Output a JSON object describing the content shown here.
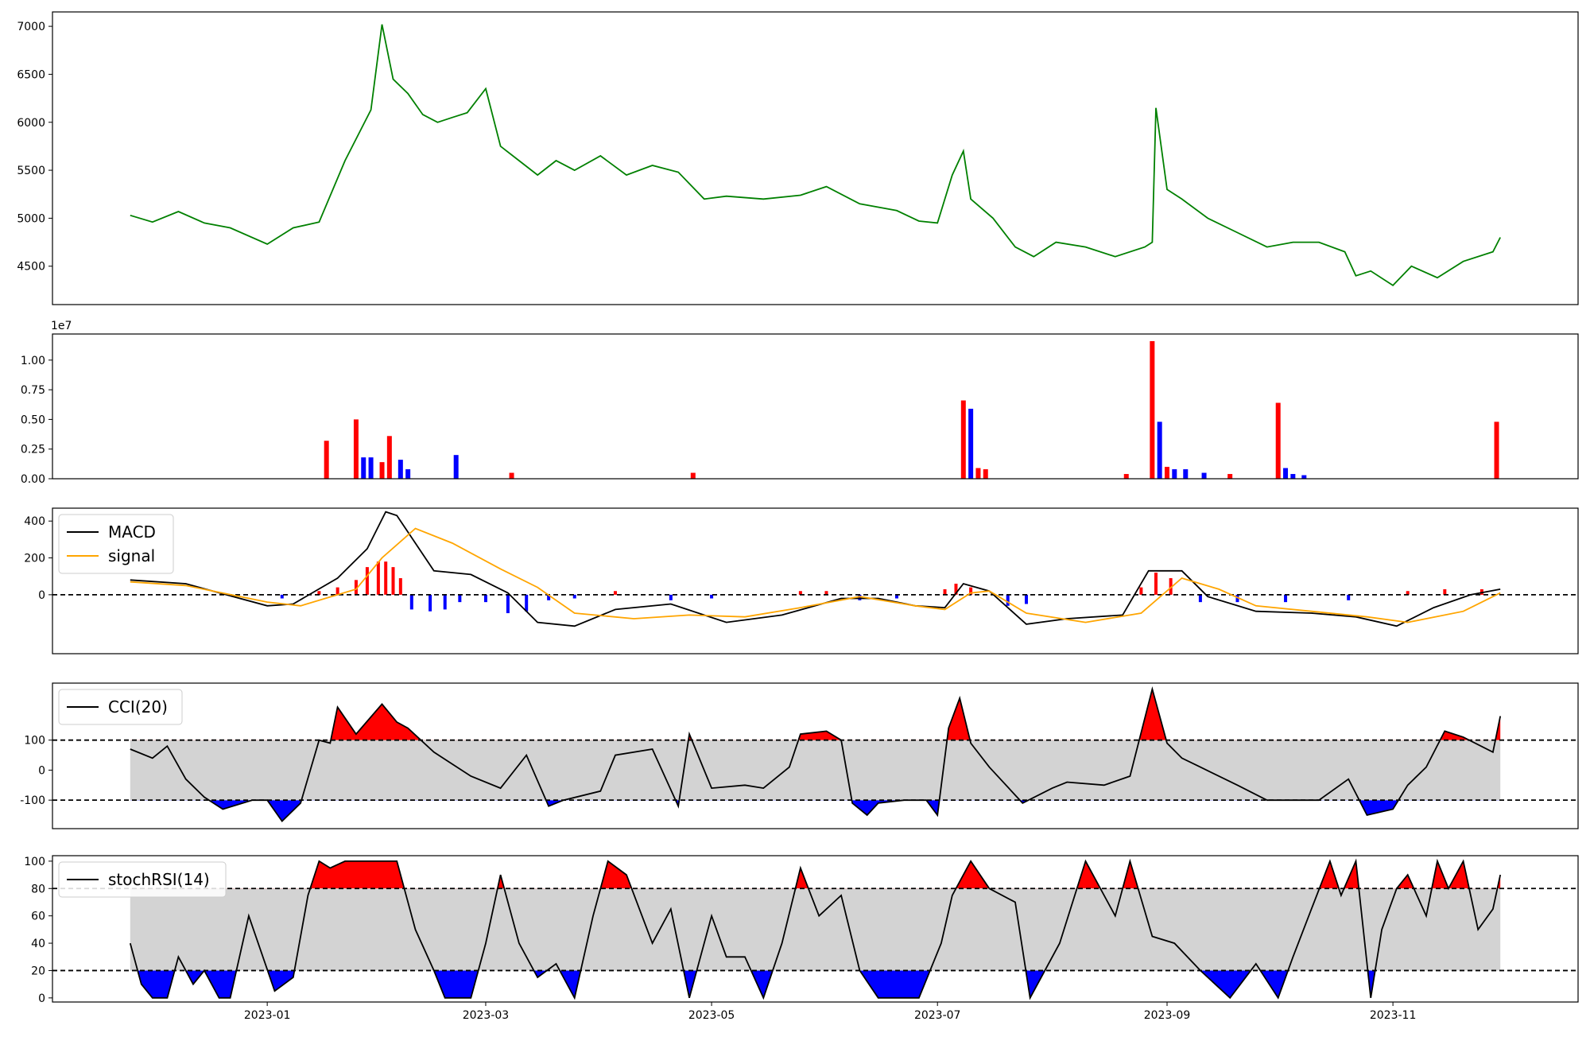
{
  "chart_data": [
    {
      "type": "line",
      "panel": "price",
      "ylim": [
        4100,
        7150
      ],
      "yticks": [
        4500,
        5000,
        5500,
        6000,
        6500,
        7000
      ],
      "line_color": "#008000",
      "x": [
        "2022-11-25",
        "2022-12-01",
        "2022-12-08",
        "2022-12-15",
        "2022-12-22",
        "2023-01-01",
        "2023-01-08",
        "2023-01-15",
        "2023-01-22",
        "2023-01-29",
        "2023-02-01",
        "2023-02-04",
        "2023-02-08",
        "2023-02-12",
        "2023-02-16",
        "2023-02-20",
        "2023-02-24",
        "2023-03-01",
        "2023-03-05",
        "2023-03-10",
        "2023-03-15",
        "2023-03-20",
        "2023-03-25",
        "2023-04-01",
        "2023-04-08",
        "2023-04-15",
        "2023-04-22",
        "2023-04-29",
        "2023-05-05",
        "2023-05-15",
        "2023-05-25",
        "2023-06-01",
        "2023-06-10",
        "2023-06-20",
        "2023-06-26",
        "2023-07-01",
        "2023-07-05",
        "2023-07-08",
        "2023-07-10",
        "2023-07-16",
        "2023-07-22",
        "2023-07-27",
        "2023-08-02",
        "2023-08-10",
        "2023-08-18",
        "2023-08-26",
        "2023-08-28",
        "2023-08-29",
        "2023-09-01",
        "2023-09-05",
        "2023-09-12",
        "2023-09-20",
        "2023-09-28",
        "2023-10-05",
        "2023-10-12",
        "2023-10-19",
        "2023-10-22",
        "2023-10-26",
        "2023-11-01",
        "2023-11-06",
        "2023-11-13",
        "2023-11-20",
        "2023-11-28",
        "2023-11-30"
      ],
      "values": [
        5030,
        4960,
        5070,
        4950,
        4900,
        4730,
        4900,
        4960,
        5600,
        6130,
        7020,
        6450,
        6300,
        6080,
        6000,
        6050,
        6100,
        6350,
        5750,
        5600,
        5450,
        5600,
        5500,
        5650,
        5450,
        5550,
        5480,
        5200,
        5230,
        5200,
        5240,
        5330,
        5150,
        5080,
        4970,
        4950,
        5450,
        5700,
        5200,
        5000,
        4700,
        4600,
        4750,
        4700,
        4600,
        4700,
        4750,
        6150,
        5300,
        5200,
        5000,
        4850,
        4700,
        4750,
        4750,
        4650,
        4400,
        4450,
        4300,
        4500,
        4380,
        4550,
        4650,
        4800
      ]
    },
    {
      "type": "bar",
      "panel": "volume",
      "scale_label": "1e7",
      "ylim": [
        0,
        1.22
      ],
      "yticks": [
        "0.00",
        "0.25",
        "0.50",
        "0.75",
        "1.00"
      ],
      "up_color": "#ff0000",
      "down_color": "#0000ff",
      "x": [
        "2023-01-17",
        "2023-01-25",
        "2023-01-27",
        "2023-01-29",
        "2023-02-01",
        "2023-02-03",
        "2023-02-06",
        "2023-02-08",
        "2023-02-21",
        "2023-03-08",
        "2023-04-26",
        "2023-07-08",
        "2023-07-10",
        "2023-07-12",
        "2023-07-14",
        "2023-08-21",
        "2023-08-28",
        "2023-08-30",
        "2023-09-01",
        "2023-09-03",
        "2023-09-06",
        "2023-09-11",
        "2023-09-18",
        "2023-10-01",
        "2023-10-03",
        "2023-10-05",
        "2023-10-08",
        "2023-11-29"
      ],
      "values": [
        0.32,
        0.5,
        0.18,
        0.18,
        0.14,
        0.36,
        0.16,
        0.08,
        0.2,
        0.05,
        0.05,
        0.66,
        0.59,
        0.09,
        0.08,
        0.04,
        1.16,
        0.48,
        0.1,
        0.08,
        0.08,
        0.05,
        0.04,
        0.64,
        0.09,
        0.04,
        0.03,
        0.48
      ],
      "directions": [
        "up",
        "up",
        "down",
        "down",
        "up",
        "up",
        "down",
        "down",
        "down",
        "up",
        "up",
        "up",
        "down",
        "up",
        "up",
        "up",
        "up",
        "down",
        "up",
        "down",
        "down",
        "down",
        "up",
        "up",
        "down",
        "down",
        "down",
        "up"
      ]
    },
    {
      "type": "line",
      "panel": "macd",
      "ylim": [
        -320,
        470
      ],
      "yticks": [
        0,
        200,
        400
      ],
      "legend_position": "upper-left",
      "hist_up_color": "#ff0000",
      "hist_down_color": "#0000ff",
      "series": [
        {
          "name": "MACD",
          "color": "#000000",
          "x": [
            "2022-11-25",
            "2022-12-10",
            "2023-01-01",
            "2023-01-08",
            "2023-01-20",
            "2023-01-28",
            "2023-02-02",
            "2023-02-05",
            "2023-02-15",
            "2023-02-25",
            "2023-03-07",
            "2023-03-15",
            "2023-03-25",
            "2023-04-05",
            "2023-04-20",
            "2023-05-05",
            "2023-05-20",
            "2023-06-05",
            "2023-06-15",
            "2023-06-25",
            "2023-07-03",
            "2023-07-08",
            "2023-07-15",
            "2023-07-25",
            "2023-08-05",
            "2023-08-20",
            "2023-08-27",
            "2023-09-05",
            "2023-09-12",
            "2023-09-25",
            "2023-10-10",
            "2023-10-22",
            "2023-11-02",
            "2023-11-12",
            "2023-11-22",
            "2023-11-30"
          ],
          "values": [
            80,
            60,
            -60,
            -50,
            90,
            250,
            450,
            430,
            130,
            110,
            10,
            -150,
            -170,
            -80,
            -50,
            -150,
            -110,
            -20,
            -20,
            -60,
            -70,
            60,
            20,
            -160,
            -130,
            -110,
            130,
            130,
            -10,
            -90,
            -100,
            -120,
            -170,
            -70,
            0,
            30
          ]
        },
        {
          "name": "signal",
          "color": "#ffa500",
          "x": [
            "2022-11-25",
            "2022-12-10",
            "2023-01-01",
            "2023-01-10",
            "2023-01-25",
            "2023-02-01",
            "2023-02-10",
            "2023-02-20",
            "2023-03-05",
            "2023-03-15",
            "2023-03-25",
            "2023-04-10",
            "2023-04-25",
            "2023-05-10",
            "2023-05-25",
            "2023-06-10",
            "2023-06-25",
            "2023-07-03",
            "2023-07-10",
            "2023-07-15",
            "2023-07-25",
            "2023-08-10",
            "2023-08-25",
            "2023-09-05",
            "2023-09-15",
            "2023-09-25",
            "2023-10-10",
            "2023-10-25",
            "2023-11-05",
            "2023-11-20",
            "2023-11-30"
          ],
          "values": [
            70,
            50,
            -40,
            -60,
            30,
            200,
            360,
            280,
            140,
            40,
            -100,
            -130,
            -110,
            -120,
            -70,
            -10,
            -60,
            -80,
            10,
            20,
            -100,
            -150,
            -100,
            90,
            30,
            -60,
            -90,
            -120,
            -150,
            -90,
            10
          ]
        }
      ],
      "histogram": {
        "x": [
          "2023-01-05",
          "2023-01-15",
          "2023-01-20",
          "2023-01-25",
          "2023-01-28",
          "2023-01-31",
          "2023-02-02",
          "2023-02-04",
          "2023-02-06",
          "2023-02-09",
          "2023-02-14",
          "2023-02-18",
          "2023-02-22",
          "2023-03-01",
          "2023-03-07",
          "2023-03-12",
          "2023-03-18",
          "2023-03-25",
          "2023-04-05",
          "2023-04-20",
          "2023-05-01",
          "2023-05-25",
          "2023-06-01",
          "2023-06-10",
          "2023-06-20",
          "2023-07-03",
          "2023-07-06",
          "2023-07-10",
          "2023-07-20",
          "2023-07-25",
          "2023-08-05",
          "2023-08-25",
          "2023-08-29",
          "2023-09-02",
          "2023-09-10",
          "2023-09-20",
          "2023-10-03",
          "2023-10-20",
          "2023-11-05",
          "2023-11-15",
          "2023-11-25"
        ],
        "values": [
          -20,
          20,
          40,
          80,
          150,
          180,
          180,
          150,
          90,
          -80,
          -90,
          -80,
          -40,
          -40,
          -100,
          -90,
          -30,
          -20,
          20,
          -30,
          -20,
          20,
          20,
          -30,
          -20,
          30,
          60,
          40,
          -60,
          -50,
          0,
          40,
          120,
          90,
          -40,
          -40,
          -40,
          -30,
          20,
          30,
          30
        ]
      }
    },
    {
      "type": "line",
      "panel": "cci",
      "ylim": [
        -195,
        290
      ],
      "yticks": [
        -100,
        0,
        100
      ],
      "thresholds": [
        100,
        -100
      ],
      "legend_position": "upper-left",
      "band_color": "#d3d3d3",
      "over_color": "#ff0000",
      "under_color": "#0000ff",
      "series": [
        {
          "name": "CCI(20)",
          "color": "#000000",
          "x": [
            "2022-11-25",
            "2022-12-01",
            "2022-12-05",
            "2022-12-10",
            "2022-12-15",
            "2022-12-20",
            "2022-12-28",
            "2023-01-01",
            "2023-01-05",
            "2023-01-10",
            "2023-01-15",
            "2023-01-18",
            "2023-01-20",
            "2023-01-25",
            "2023-02-01",
            "2023-02-05",
            "2023-02-08",
            "2023-02-15",
            "2023-02-20",
            "2023-02-25",
            "2023-03-05",
            "2023-03-12",
            "2023-03-18",
            "2023-03-22",
            "2023-04-01",
            "2023-04-05",
            "2023-04-15",
            "2023-04-22",
            "2023-04-25",
            "2023-05-01",
            "2023-05-10",
            "2023-05-15",
            "2023-05-22",
            "2023-05-25",
            "2023-06-01",
            "2023-06-05",
            "2023-06-08",
            "2023-06-12",
            "2023-06-15",
            "2023-06-22",
            "2023-06-28",
            "2023-07-01",
            "2023-07-04",
            "2023-07-07",
            "2023-07-10",
            "2023-07-15",
            "2023-07-24",
            "2023-08-01",
            "2023-08-05",
            "2023-08-15",
            "2023-08-22",
            "2023-08-28",
            "2023-09-01",
            "2023-09-05",
            "2023-09-10",
            "2023-09-20",
            "2023-09-28",
            "2023-10-05",
            "2023-10-12",
            "2023-10-20",
            "2023-10-25",
            "2023-11-01",
            "2023-11-05",
            "2023-11-10",
            "2023-11-15",
            "2023-11-20",
            "2023-11-28",
            "2023-11-30"
          ],
          "values": [
            70,
            40,
            80,
            -30,
            -90,
            -130,
            -100,
            -100,
            -170,
            -110,
            100,
            90,
            210,
            120,
            220,
            160,
            140,
            60,
            20,
            -20,
            -60,
            50,
            -120,
            -100,
            -70,
            50,
            70,
            -120,
            120,
            -60,
            -50,
            -60,
            10,
            120,
            130,
            100,
            -110,
            -150,
            -110,
            -100,
            -100,
            -150,
            140,
            240,
            90,
            10,
            -110,
            -60,
            -40,
            -50,
            -20,
            270,
            90,
            40,
            10,
            -50,
            -100,
            -100,
            -100,
            -30,
            -150,
            -130,
            -50,
            10,
            130,
            110,
            60,
            180
          ]
        }
      ]
    },
    {
      "type": "line",
      "panel": "stochrsi",
      "ylim": [
        -3,
        104
      ],
      "yticks": [
        0,
        20,
        40,
        60,
        80,
        100
      ],
      "thresholds": [
        80,
        20
      ],
      "legend_position": "upper-left",
      "band_color": "#d3d3d3",
      "over_color": "#ff0000",
      "under_color": "#0000ff",
      "series": [
        {
          "name": "stochRSI(14)",
          "color": "#000000",
          "x": [
            "2022-11-25",
            "2022-11-28",
            "2022-12-01",
            "2022-12-05",
            "2022-12-08",
            "2022-12-12",
            "2022-12-15",
            "2022-12-19",
            "2022-12-22",
            "2022-12-27",
            "2023-01-03",
            "2023-01-08",
            "2023-01-12",
            "2023-01-15",
            "2023-01-18",
            "2023-01-22",
            "2023-02-05",
            "2023-02-10",
            "2023-02-15",
            "2023-02-18",
            "2023-02-25",
            "2023-03-01",
            "2023-03-05",
            "2023-03-10",
            "2023-03-15",
            "2023-03-20",
            "2023-03-25",
            "2023-03-30",
            "2023-04-03",
            "2023-04-08",
            "2023-04-15",
            "2023-04-20",
            "2023-04-25",
            "2023-05-01",
            "2023-05-05",
            "2023-05-10",
            "2023-05-15",
            "2023-05-20",
            "2023-05-25",
            "2023-05-30",
            "2023-06-05",
            "2023-06-10",
            "2023-06-15",
            "2023-06-20",
            "2023-06-26",
            "2023-07-02",
            "2023-07-05",
            "2023-07-10",
            "2023-07-15",
            "2023-07-22",
            "2023-07-26",
            "2023-08-03",
            "2023-08-10",
            "2023-08-18",
            "2023-08-22",
            "2023-08-28",
            "2023-09-03",
            "2023-09-10",
            "2023-09-18",
            "2023-09-25",
            "2023-10-01",
            "2023-10-05",
            "2023-10-10",
            "2023-10-15",
            "2023-10-18",
            "2023-10-22",
            "2023-10-26",
            "2023-10-29",
            "2023-11-02",
            "2023-11-05",
            "2023-11-10",
            "2023-11-13",
            "2023-11-16",
            "2023-11-20",
            "2023-11-24",
            "2023-11-28",
            "2023-11-30"
          ],
          "values": [
            40,
            10,
            0,
            0,
            30,
            10,
            20,
            0,
            0,
            60,
            5,
            15,
            75,
            100,
            95,
            100,
            100,
            50,
            20,
            0,
            0,
            40,
            90,
            40,
            15,
            25,
            0,
            60,
            100,
            90,
            40,
            65,
            0,
            60,
            30,
            30,
            0,
            40,
            95,
            60,
            75,
            20,
            0,
            0,
            0,
            40,
            75,
            100,
            80,
            70,
            0,
            40,
            100,
            60,
            100,
            45,
            40,
            20,
            0,
            25,
            0,
            30,
            65,
            100,
            75,
            100,
            0,
            50,
            80,
            90,
            60,
            100,
            80,
            100,
            50,
            65,
            90
          ]
        }
      ]
    }
  ],
  "x_axis": {
    "start": "2022-11-25",
    "end": "2023-11-30",
    "xlim": [
      "2022-11-04",
      "2023-12-21"
    ],
    "tick_dates": [
      "2023-01-01",
      "2023-03-01",
      "2023-05-01",
      "2023-07-01",
      "2023-09-01",
      "2023-11-01"
    ],
    "tick_labels": [
      "2023-01",
      "2023-03",
      "2023-05",
      "2023-07",
      "2023-09",
      "2023-11"
    ]
  }
}
